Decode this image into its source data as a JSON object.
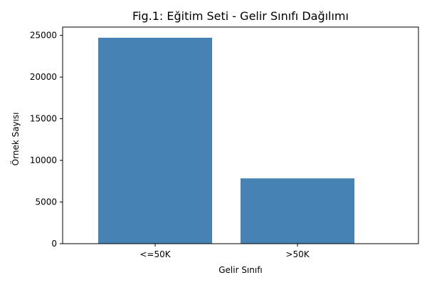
{
  "chart_data": {
    "type": "bar",
    "title": "Fig.1: Eğitim Seti - Gelir Sınıfı Dağılımı",
    "xlabel": "Gelir Sınıfı",
    "ylabel": "Örnek Sayısı",
    "categories": [
      "<=50K",
      ">50K"
    ],
    "values": [
      24720,
      7841
    ],
    "ylim": [
      0,
      26000
    ],
    "yticks": [
      0,
      5000,
      10000,
      15000,
      20000,
      25000
    ],
    "ytick_labels": [
      "0",
      "5000",
      "10000",
      "15000",
      "20000",
      "25000"
    ],
    "grid": false,
    "legend": "none",
    "bar_color": "#4682b4"
  }
}
